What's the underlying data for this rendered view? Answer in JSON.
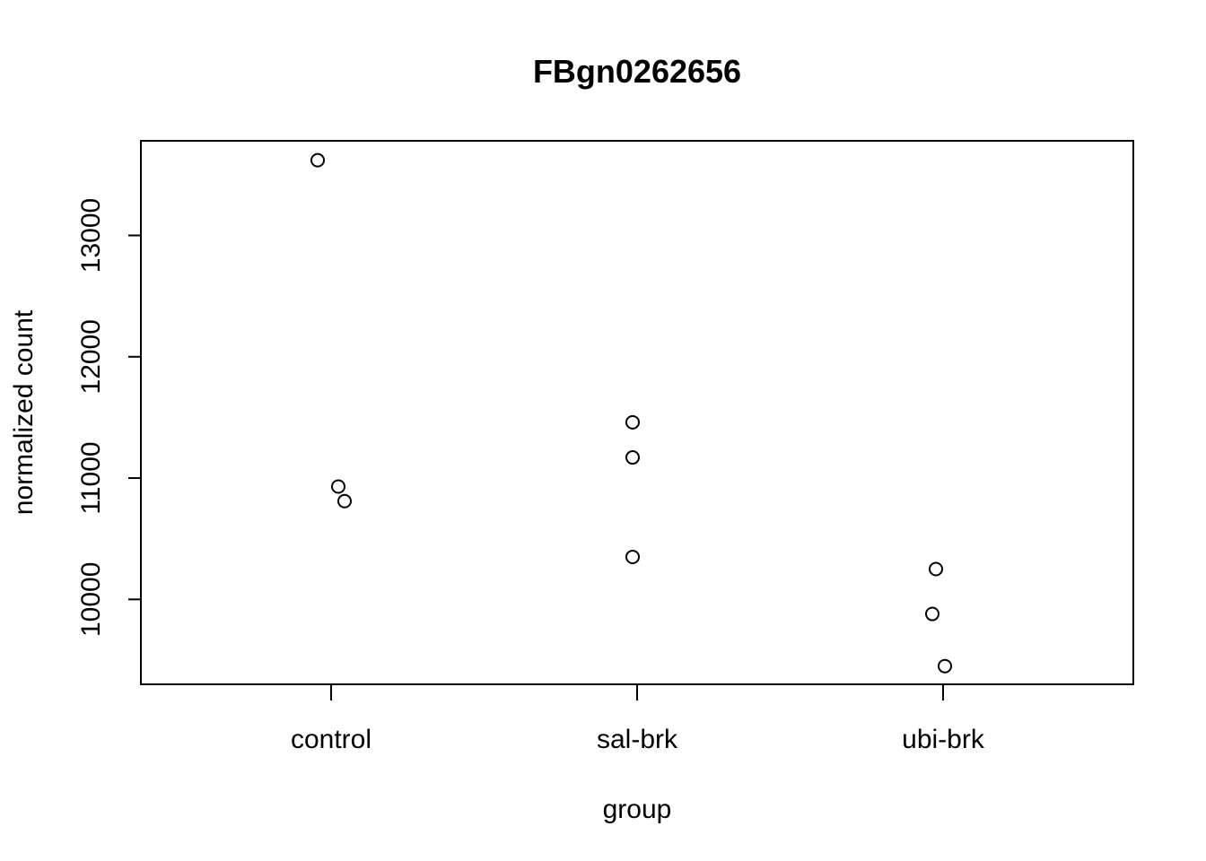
{
  "chart_data": {
    "type": "scatter",
    "title": "FBgn0262656",
    "xlabel": "group",
    "ylabel": "normalized count",
    "categories": [
      "control",
      "sal-brk",
      "ubi-brk"
    ],
    "y_ticks": [
      10000,
      11000,
      12000,
      13000
    ],
    "ylim": [
      9300,
      13780
    ],
    "grid": false,
    "legend": "none",
    "points": [
      {
        "category": "control",
        "y": 13620
      },
      {
        "category": "control",
        "y": 10930
      },
      {
        "category": "control",
        "y": 10810
      },
      {
        "category": "sal-brk",
        "y": 11460
      },
      {
        "category": "sal-brk",
        "y": 11170
      },
      {
        "category": "sal-brk",
        "y": 10350
      },
      {
        "category": "ubi-brk",
        "y": 10250
      },
      {
        "category": "ubi-brk",
        "y": 9880
      },
      {
        "category": "ubi-brk",
        "y": 9450
      }
    ]
  }
}
